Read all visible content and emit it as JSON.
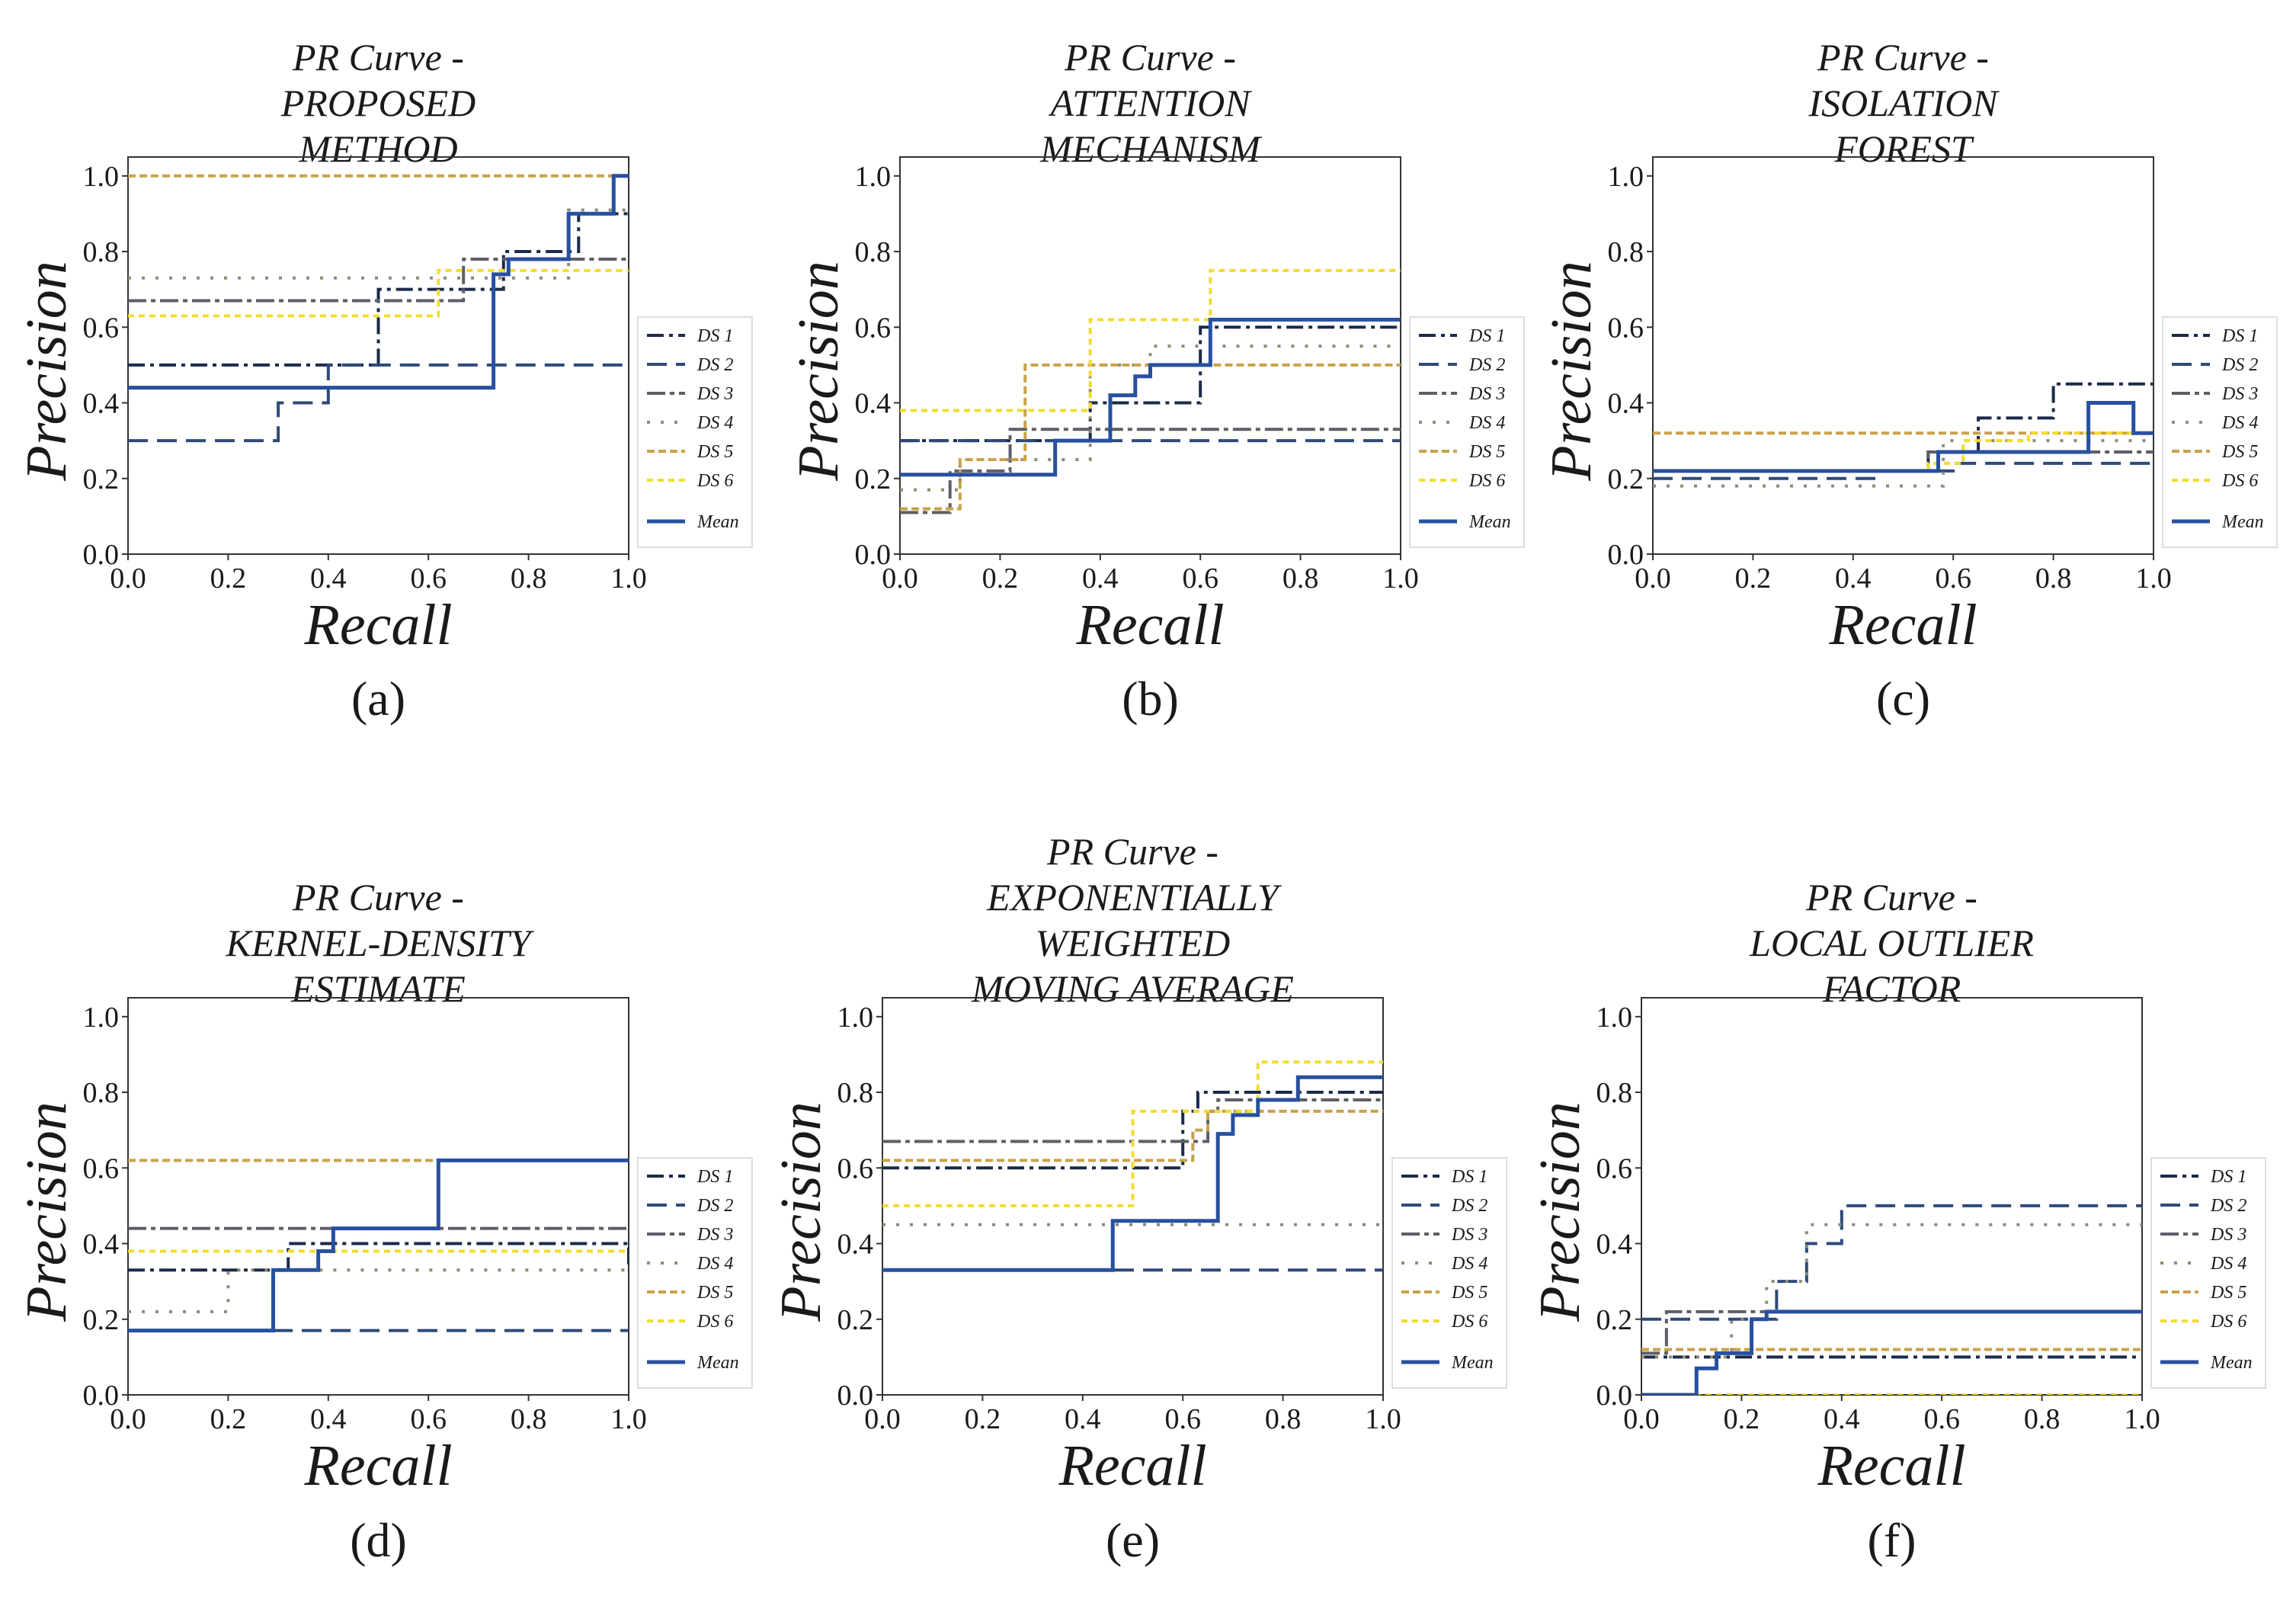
{
  "panels": [
    {
      "title_lines": [
        "PR Curve -",
        "PROPOSED",
        "METHOD"
      ],
      "caption": "(a)",
      "xlabel": "Recall",
      "ylabel": "Precision",
      "xticks": [
        "0.0",
        "0.2",
        "0.4",
        "0.6",
        "0.8",
        "1.0"
      ],
      "yticks": [
        "0.0",
        "0.2",
        "0.4",
        "0.6",
        "0.8",
        "1.0"
      ],
      "legend": [
        "DS 1",
        "DS 2",
        "DS 3",
        "DS 4",
        "DS 5",
        "DS 6",
        "Mean"
      ]
    },
    {
      "title_lines": [
        "PR Curve -",
        "ATTENTION",
        "MECHANISM"
      ],
      "caption": "(b)",
      "xlabel": "Recall",
      "ylabel": "Precision",
      "xticks": [
        "0.0",
        "0.2",
        "0.4",
        "0.6",
        "0.8",
        "1.0"
      ],
      "yticks": [
        "0.0",
        "0.2",
        "0.4",
        "0.6",
        "0.8",
        "1.0"
      ],
      "legend": [
        "DS 1",
        "DS 2",
        "DS 3",
        "DS 4",
        "DS 5",
        "DS 6",
        "Mean"
      ]
    },
    {
      "title_lines": [
        "PR Curve -",
        "ISOLATION",
        "FOREST"
      ],
      "caption": "(c)",
      "xlabel": "Recall",
      "ylabel": "Precision",
      "xticks": [
        "0.0",
        "0.2",
        "0.4",
        "0.6",
        "0.8",
        "1.0"
      ],
      "yticks": [
        "0.0",
        "0.2",
        "0.4",
        "0.6",
        "0.8",
        "1.0"
      ],
      "legend": [
        "DS 1",
        "DS 2",
        "DS 3",
        "DS 4",
        "DS 5",
        "DS 6",
        "Mean"
      ]
    },
    {
      "title_lines": [
        "PR Curve -",
        "KERNEL-DENSITY",
        "ESTIMATE"
      ],
      "caption": "(d)",
      "xlabel": "Recall",
      "ylabel": "Precision",
      "xticks": [
        "0.0",
        "0.2",
        "0.4",
        "0.6",
        "0.8",
        "1.0"
      ],
      "yticks": [
        "0.0",
        "0.2",
        "0.4",
        "0.6",
        "0.8",
        "1.0"
      ],
      "legend": [
        "DS 1",
        "DS 2",
        "DS 3",
        "DS 4",
        "DS 5",
        "DS 6",
        "Mean"
      ]
    },
    {
      "title_lines": [
        "PR Curve -",
        "EXPONENTIALLY",
        "WEIGHTED",
        "MOVING AVERAGE"
      ],
      "caption": "(e)",
      "xlabel": "Recall",
      "ylabel": "Precision",
      "xticks": [
        "0.0",
        "0.2",
        "0.4",
        "0.6",
        "0.8",
        "1.0"
      ],
      "yticks": [
        "0.0",
        "0.2",
        "0.4",
        "0.6",
        "0.8",
        "1.0"
      ],
      "legend": [
        "DS 1",
        "DS 2",
        "DS 3",
        "DS 4",
        "DS 5",
        "DS 6",
        "Mean"
      ]
    },
    {
      "title_lines": [
        "PR Curve -",
        "LOCAL OUTLIER",
        "FACTOR"
      ],
      "caption": "(f)",
      "xlabel": "Recall",
      "ylabel": "Precision",
      "xticks": [
        "0.0",
        "0.2",
        "0.4",
        "0.6",
        "0.8",
        "1.0"
      ],
      "yticks": [
        "0.0",
        "0.2",
        "0.4",
        "0.6",
        "0.8",
        "1.0"
      ],
      "legend": [
        "DS 1",
        "DS 2",
        "DS 3",
        "DS 4",
        "DS 5",
        "DS 6",
        "Mean"
      ]
    }
  ],
  "styles": {
    "series_colors": {
      "DS 1": "#1c2a4a",
      "DS 2": "#2e4a78",
      "DS 3": "#5d5f66",
      "DS 4": "#8e8c78",
      "DS 5": "#c9a24a",
      "DS 6": "#f2dc2e",
      "Mean": "#2850a0"
    },
    "series_dash": {
      "DS 1": "22,7,5,7",
      "DS 2": "26,12",
      "DS 3": "24,6,6,6",
      "DS 4": "4,14",
      "DS 5": "10,5",
      "DS 6": "8,6",
      "Mean": ""
    }
  },
  "chart_data": [
    {
      "type": "line",
      "step": "post",
      "title": "PR Curve - PROPOSED METHOD",
      "xlabel": "Recall",
      "ylabel": "Precision",
      "xlim": [
        0,
        1
      ],
      "ylim": [
        0,
        1.05
      ],
      "series": [
        {
          "name": "DS 1",
          "x": [
            0,
            0.5,
            0.75,
            0.9,
            1.0
          ],
          "y": [
            0.5,
            0.7,
            0.8,
            0.9,
            0.9
          ]
        },
        {
          "name": "DS 2",
          "x": [
            0,
            0.3,
            0.4,
            0.5,
            1.0
          ],
          "y": [
            0.3,
            0.4,
            0.5,
            0.5,
            0.5
          ]
        },
        {
          "name": "DS 3",
          "x": [
            0,
            0.67,
            1.0
          ],
          "y": [
            0.67,
            0.78,
            0.78
          ]
        },
        {
          "name": "DS 4",
          "x": [
            0,
            0.72,
            0.88,
            1.0
          ],
          "y": [
            0.73,
            0.73,
            0.91,
            0.91
          ]
        },
        {
          "name": "DS 5",
          "x": [
            0,
            1.0
          ],
          "y": [
            1.0,
            1.0
          ]
        },
        {
          "name": "DS 6",
          "x": [
            0,
            0.62,
            1.0
          ],
          "y": [
            0.63,
            0.75,
            0.75
          ]
        },
        {
          "name": "Mean",
          "x": [
            0,
            0.73,
            0.76,
            0.88,
            0.97,
            1.0
          ],
          "y": [
            0.44,
            0.74,
            0.78,
            0.9,
            1.0,
            1.0
          ]
        }
      ]
    },
    {
      "type": "line",
      "step": "post",
      "title": "PR Curve - ATTENTION MECHANISM",
      "xlabel": "Recall",
      "ylabel": "Precision",
      "xlim": [
        0,
        1
      ],
      "ylim": [
        0,
        1.05
      ],
      "series": [
        {
          "name": "DS 1",
          "x": [
            0,
            0.25,
            0.38,
            0.6,
            1.0
          ],
          "y": [
            0.3,
            0.3,
            0.4,
            0.6,
            0.6
          ]
        },
        {
          "name": "DS 2",
          "x": [
            0,
            1.0
          ],
          "y": [
            0.3,
            0.3
          ]
        },
        {
          "name": "DS 3",
          "x": [
            0,
            0.1,
            0.22,
            0.25,
            1.0
          ],
          "y": [
            0.11,
            0.22,
            0.33,
            0.33,
            0.33
          ]
        },
        {
          "name": "DS 4",
          "x": [
            0,
            0.12,
            0.38,
            0.5,
            1.0
          ],
          "y": [
            0.17,
            0.25,
            0.5,
            0.55,
            0.55
          ]
        },
        {
          "name": "DS 5",
          "x": [
            0,
            0.12,
            0.25,
            1.0
          ],
          "y": [
            0.12,
            0.25,
            0.5,
            0.5
          ]
        },
        {
          "name": "DS 6",
          "x": [
            0,
            0.25,
            0.38,
            0.62,
            1.0
          ],
          "y": [
            0.38,
            0.38,
            0.62,
            0.75,
            0.75
          ]
        },
        {
          "name": "Mean",
          "x": [
            0,
            0.31,
            0.42,
            0.47,
            0.5,
            0.62,
            1.0
          ],
          "y": [
            0.21,
            0.3,
            0.42,
            0.47,
            0.5,
            0.62,
            0.62
          ]
        }
      ]
    },
    {
      "type": "line",
      "step": "post",
      "title": "PR Curve - ISOLATION FOREST",
      "xlabel": "Recall",
      "ylabel": "Precision",
      "xlim": [
        0,
        1
      ],
      "ylim": [
        0,
        1.05
      ],
      "series": [
        {
          "name": "DS 1",
          "x": [
            0,
            0.55,
            0.65,
            0.8,
            1.0
          ],
          "y": [
            0.22,
            0.27,
            0.36,
            0.45,
            0.45
          ]
        },
        {
          "name": "DS 2",
          "x": [
            0,
            0.45,
            0.6,
            1.0
          ],
          "y": [
            0.2,
            0.22,
            0.24,
            0.24
          ]
        },
        {
          "name": "DS 3",
          "x": [
            0,
            0.55,
            1.0
          ],
          "y": [
            0.22,
            0.27,
            0.27
          ]
        },
        {
          "name": "DS 4",
          "x": [
            0,
            0.58,
            0.7,
            1.0
          ],
          "y": [
            0.18,
            0.3,
            0.3,
            0.3
          ]
        },
        {
          "name": "DS 5",
          "x": [
            0,
            1.0
          ],
          "y": [
            0.32,
            0.32
          ]
        },
        {
          "name": "DS 6",
          "x": [
            0,
            0.55,
            0.62,
            0.75,
            1.0
          ],
          "y": [
            0.22,
            0.24,
            0.3,
            0.32,
            0.32
          ]
        },
        {
          "name": "Mean",
          "x": [
            0,
            0.57,
            0.7,
            0.87,
            0.96,
            1.0
          ],
          "y": [
            0.22,
            0.27,
            0.27,
            0.4,
            0.32,
            0.32
          ]
        }
      ]
    },
    {
      "type": "line",
      "step": "post",
      "title": "PR Curve - KERNEL-DENSITY ESTIMATE",
      "xlabel": "Recall",
      "ylabel": "Precision",
      "xlim": [
        0,
        1
      ],
      "ylim": [
        0,
        1.05
      ],
      "series": [
        {
          "name": "DS 1",
          "x": [
            0,
            0.3,
            0.32,
            1.0
          ],
          "y": [
            0.33,
            0.33,
            0.4,
            0.33
          ]
        },
        {
          "name": "DS 2",
          "x": [
            0,
            1.0
          ],
          "y": [
            0.17,
            0.17
          ]
        },
        {
          "name": "DS 3",
          "x": [
            0,
            1.0
          ],
          "y": [
            0.44,
            0.44
          ]
        },
        {
          "name": "DS 4",
          "x": [
            0,
            0.2,
            1.0
          ],
          "y": [
            0.22,
            0.33,
            0.33
          ]
        },
        {
          "name": "DS 5",
          "x": [
            0,
            1.0
          ],
          "y": [
            0.62,
            0.62
          ]
        },
        {
          "name": "DS 6",
          "x": [
            0,
            1.0
          ],
          "y": [
            0.38,
            0.38
          ]
        },
        {
          "name": "Mean",
          "x": [
            0,
            0.29,
            0.38,
            0.41,
            0.62,
            1.0
          ],
          "y": [
            0.17,
            0.33,
            0.38,
            0.44,
            0.62,
            0.62
          ]
        }
      ]
    },
    {
      "type": "line",
      "step": "post",
      "title": "PR Curve - EXPONENTIALLY WEIGHTED MOVING AVERAGE",
      "xlabel": "Recall",
      "ylabel": "Precision",
      "xlim": [
        0,
        1
      ],
      "ylim": [
        0,
        1.05
      ],
      "series": [
        {
          "name": "DS 1",
          "x": [
            0,
            0.6,
            0.63,
            1.0
          ],
          "y": [
            0.6,
            0.75,
            0.8,
            0.8
          ]
        },
        {
          "name": "DS 2",
          "x": [
            0,
            0.5,
            1.0
          ],
          "y": [
            0.33,
            0.33,
            0.33
          ]
        },
        {
          "name": "DS 3",
          "x": [
            0,
            0.65,
            0.67,
            1.0
          ],
          "y": [
            0.67,
            0.75,
            0.78,
            0.78
          ]
        },
        {
          "name": "DS 4",
          "x": [
            0,
            1.0
          ],
          "y": [
            0.45,
            0.45
          ]
        },
        {
          "name": "DS 5",
          "x": [
            0,
            0.62,
            0.65,
            1.0
          ],
          "y": [
            0.62,
            0.7,
            0.75,
            0.75
          ]
        },
        {
          "name": "DS 6",
          "x": [
            0,
            0.5,
            0.75,
            1.0
          ],
          "y": [
            0.5,
            0.75,
            0.88,
            0.88
          ]
        },
        {
          "name": "Mean",
          "x": [
            0,
            0.46,
            0.67,
            0.7,
            0.75,
            0.83,
            1.0
          ],
          "y": [
            0.33,
            0.46,
            0.69,
            0.74,
            0.78,
            0.84,
            0.84
          ]
        }
      ]
    },
    {
      "type": "line",
      "step": "post",
      "title": "PR Curve - LOCAL OUTLIER FACTOR",
      "xlabel": "Recall",
      "ylabel": "Precision",
      "xlim": [
        0,
        1
      ],
      "ylim": [
        0,
        1.05
      ],
      "series": [
        {
          "name": "DS 1",
          "x": [
            0,
            1.0
          ],
          "y": [
            0.1,
            0.1
          ]
        },
        {
          "name": "DS 2",
          "x": [
            0,
            0.2,
            0.27,
            0.33,
            0.4,
            0.5,
            1.0
          ],
          "y": [
            0.2,
            0.2,
            0.3,
            0.4,
            0.5,
            0.5,
            0.5
          ]
        },
        {
          "name": "DS 3",
          "x": [
            0,
            0.05,
            1.0
          ],
          "y": [
            0.11,
            0.22,
            0.22
          ]
        },
        {
          "name": "DS 4",
          "x": [
            0,
            0.18,
            0.25,
            0.33,
            0.4,
            1.0
          ],
          "y": [
            0.1,
            0.2,
            0.3,
            0.45,
            0.45,
            0.45
          ]
        },
        {
          "name": "DS 5",
          "x": [
            0,
            1.0
          ],
          "y": [
            0.12,
            0.12
          ]
        },
        {
          "name": "DS 6",
          "x": [
            0,
            1.0
          ],
          "y": [
            0.0,
            0.0
          ]
        },
        {
          "name": "Mean",
          "x": [
            0,
            0.11,
            0.15,
            0.22,
            0.25,
            1.0
          ],
          "y": [
            0.0,
            0.07,
            0.11,
            0.2,
            0.22,
            0.22
          ]
        }
      ]
    }
  ]
}
